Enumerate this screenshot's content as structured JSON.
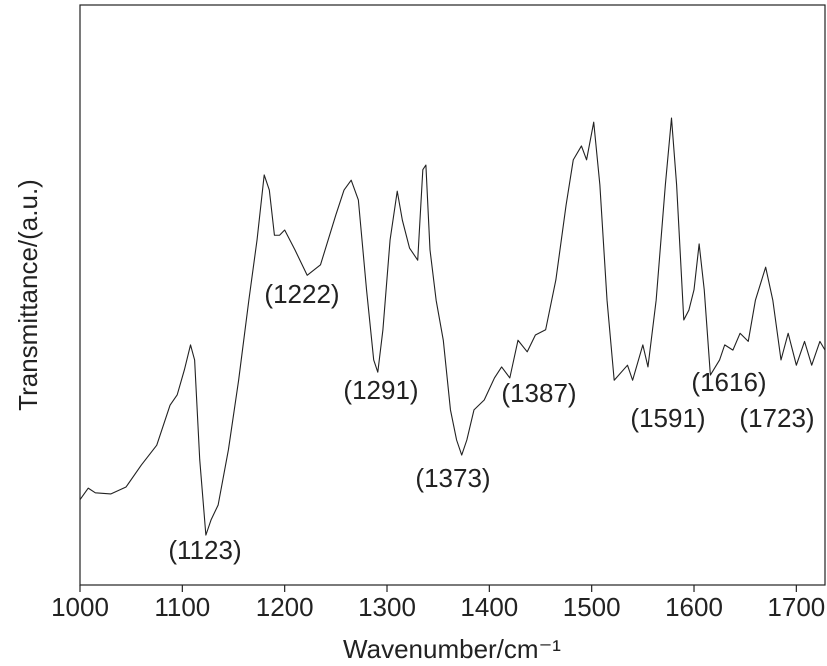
{
  "chart_data": {
    "type": "line",
    "x_label": "Wavenumber/cm⁻¹",
    "y_label": "Transmittance/(a.u.)",
    "color": "#222222",
    "xlim": [
      1000,
      1728
    ],
    "ylim": [
      0,
      100
    ],
    "xticks": [
      1000,
      1100,
      1200,
      1300,
      1400,
      1500,
      1600,
      1700
    ],
    "x": [
      1000,
      1008,
      1015,
      1030,
      1045,
      1060,
      1075,
      1088,
      1095,
      1102,
      1108,
      1112,
      1117,
      1123,
      1128,
      1135,
      1145,
      1155,
      1165,
      1173,
      1180,
      1185,
      1190,
      1195,
      1200,
      1210,
      1222,
      1235,
      1250,
      1258,
      1265,
      1272,
      1280,
      1287,
      1291,
      1296,
      1303,
      1310,
      1315,
      1322,
      1330,
      1335,
      1338,
      1342,
      1348,
      1355,
      1362,
      1368,
      1373,
      1378,
      1385,
      1395,
      1405,
      1412,
      1420,
      1428,
      1437,
      1445,
      1455,
      1465,
      1475,
      1482,
      1490,
      1495,
      1502,
      1508,
      1515,
      1522,
      1535,
      1540,
      1550,
      1555,
      1563,
      1572,
      1578,
      1583,
      1590,
      1595,
      1600,
      1605,
      1610,
      1616,
      1625,
      1630,
      1638,
      1645,
      1653,
      1660,
      1670,
      1677,
      1685,
      1692,
      1700,
      1708,
      1715,
      1723,
      1728
    ],
    "values": [
      14.7,
      16.7,
      15.9,
      15.7,
      16.9,
      20.7,
      24.1,
      31.0,
      32.8,
      37.1,
      41.4,
      38.8,
      21.6,
      8.6,
      11.2,
      13.8,
      23.3,
      35.3,
      49.1,
      59.5,
      70.7,
      68.1,
      60.3,
      60.3,
      61.2,
      57.8,
      53.4,
      55.2,
      63.8,
      68.1,
      69.8,
      66.4,
      50.9,
      38.8,
      36.7,
      44.0,
      59.5,
      67.9,
      62.9,
      58.1,
      56.0,
      71.6,
      72.4,
      57.8,
      49.1,
      42.2,
      30.2,
      25.0,
      22.4,
      25.0,
      30.2,
      31.9,
      35.7,
      37.6,
      35.7,
      42.2,
      40.2,
      43.1,
      44.0,
      52.6,
      65.5,
      73.3,
      75.7,
      73.3,
      79.8,
      69.0,
      49.1,
      35.3,
      37.9,
      35.3,
      41.4,
      37.6,
      49.1,
      69.0,
      80.5,
      69.0,
      45.7,
      47.4,
      50.9,
      58.8,
      50.9,
      36.2,
      38.8,
      41.4,
      40.5,
      43.4,
      42.0,
      49.1,
      54.8,
      49.1,
      38.8,
      43.4,
      37.9,
      42.0,
      37.9,
      42.0,
      40.5
    ],
    "annotations": [
      "(1123)",
      "(1222)",
      "(1291)",
      "(1373)",
      "(1387)",
      "(1591)",
      "(1616)",
      "(1723)"
    ]
  }
}
